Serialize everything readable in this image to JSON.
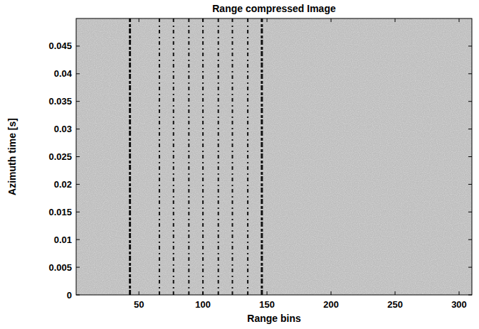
{
  "chart_data": {
    "type": "image",
    "title": "Range compressed Image",
    "x_label": "Range bins",
    "y_label": "Azimuth time [s]",
    "x": [
      43,
      66,
      77,
      89,
      100,
      112,
      123,
      135,
      146
    ],
    "color": "#111111",
    "xlim": [
      1,
      310
    ],
    "ylim": [
      0,
      0.05
    ],
    "xticks": [
      50,
      100,
      150,
      200,
      250,
      300
    ],
    "yticks": [
      0,
      0.005,
      0.01,
      0.015,
      0.02,
      0.025,
      0.03,
      0.035,
      0.04,
      0.045
    ],
    "grid": false
  }
}
